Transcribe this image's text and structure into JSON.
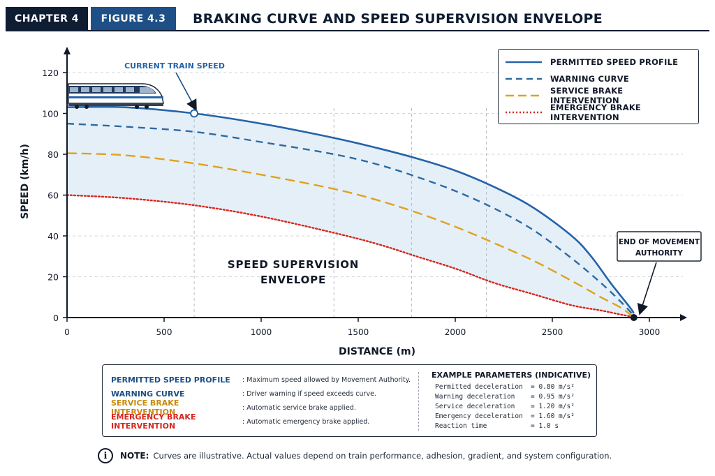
{
  "header": {
    "chapter": "CHAPTER 4",
    "figure": "FIGURE 4.3",
    "title": "BRAKING CURVE AND SPEED SUPERVISION ENVELOPE"
  },
  "colors": {
    "navy": "#0f1d33",
    "permitted": "#2563a8",
    "warning": "#2d6aa3",
    "service": "#e0a21a",
    "emergency": "#d7261e",
    "envelope_fill": "#e4eff8"
  },
  "chart_data": {
    "type": "line",
    "xlabel": "DISTANCE (m)",
    "ylabel": "SPEED (km/h)",
    "xlim": [
      0,
      3000
    ],
    "ylim": [
      0,
      120
    ],
    "x_ticks": [
      0,
      500,
      1000,
      1500,
      2000,
      2500,
      3000
    ],
    "y_ticks": [
      0,
      20,
      40,
      60,
      80,
      100,
      120
    ],
    "series": [
      {
        "name": "PERMITTED SPEED PROFILE",
        "style": "solid",
        "color": "#2563a8",
        "points": [
          [
            0,
            103
          ],
          [
            300,
            103
          ],
          [
            655,
            100
          ],
          [
            1000,
            95
          ],
          [
            1375,
            88
          ],
          [
            1600,
            83
          ],
          [
            1800,
            78
          ],
          [
            2000,
            72
          ],
          [
            2200,
            64
          ],
          [
            2400,
            54
          ],
          [
            2600,
            40
          ],
          [
            2700,
            30
          ],
          [
            2800,
            17
          ],
          [
            2900,
            5
          ],
          [
            2920,
            2
          ]
        ]
      },
      {
        "name": "WARNING CURVE",
        "style": "dashed",
        "color": "#2d6aa3",
        "points": [
          [
            0,
            95
          ],
          [
            300,
            93.5
          ],
          [
            655,
            91
          ],
          [
            1000,
            86
          ],
          [
            1375,
            80
          ],
          [
            1600,
            75
          ],
          [
            1800,
            69
          ],
          [
            2000,
            62
          ],
          [
            2200,
            53.5
          ],
          [
            2400,
            43
          ],
          [
            2600,
            29
          ],
          [
            2750,
            17
          ],
          [
            2850,
            8
          ],
          [
            2920,
            1
          ]
        ]
      },
      {
        "name": "SERVICE BRAKE INTERVENTION",
        "style": "dashed",
        "color": "#e0a21a",
        "points": [
          [
            0,
            80.5
          ],
          [
            300,
            79.5
          ],
          [
            655,
            75.5
          ],
          [
            1000,
            70
          ],
          [
            1375,
            63
          ],
          [
            1600,
            57.5
          ],
          [
            1800,
            51.5
          ],
          [
            2000,
            44.5
          ],
          [
            2200,
            36.5
          ],
          [
            2400,
            28
          ],
          [
            2600,
            18
          ],
          [
            2750,
            10
          ],
          [
            2850,
            5
          ],
          [
            2910,
            1
          ]
        ]
      },
      {
        "name": "EMERGENCY BRAKE INTERVENTION",
        "style": "dotted",
        "color": "#d7261e",
        "points": [
          [
            0,
            60
          ],
          [
            300,
            58.5
          ],
          [
            655,
            55
          ],
          [
            1000,
            49.5
          ],
          [
            1375,
            41.5
          ],
          [
            1600,
            36
          ],
          [
            1800,
            30
          ],
          [
            2000,
            24
          ],
          [
            2200,
            17
          ],
          [
            2400,
            11.5
          ],
          [
            2600,
            6
          ],
          [
            2750,
            3.5
          ],
          [
            2850,
            1.5
          ],
          [
            2910,
            0.5
          ]
        ]
      }
    ],
    "markers": [
      {
        "label": "CURRENT TRAIN SPEED",
        "x": 655,
        "y": 100
      },
      {
        "label": "END OF MOVEMENT AUTHORITY",
        "x": 2920,
        "y": 0
      }
    ],
    "reference_lines_x": [
      655,
      1375,
      1775,
      2160
    ],
    "envelope_label": [
      "SPEED SUPERVISION",
      "ENVELOPE"
    ],
    "legend_position": "top-right",
    "grid": "dashed"
  },
  "legend": [
    {
      "label": "PERMITTED SPEED PROFILE"
    },
    {
      "label": "WARNING CURVE"
    },
    {
      "label": "SERVICE BRAKE INTERVENTION"
    },
    {
      "label": "EMERGENCY BRAKE INTERVENTION"
    }
  ],
  "definitions": [
    {
      "term": "PERMITTED SPEED PROFILE",
      "desc": ": Maximum speed allowed by Movement Authority."
    },
    {
      "term": "WARNING CURVE",
      "desc": ": Driver warning if speed exceeds curve."
    },
    {
      "term": "SERVICE BRAKE INTERVENTION",
      "desc": ": Automatic service brake applied."
    },
    {
      "term": "EMERGENCY BRAKE INTERVENTION",
      "desc": ": Automatic emergency brake applied."
    }
  ],
  "parameters": {
    "title": "EXAMPLE PARAMETERS (INDICATIVE)",
    "rows": [
      {
        "name": "Permitted deceleration",
        "value": "= 0.80 m/s²"
      },
      {
        "name": "Warning deceleration",
        "value": "= 0.95 m/s²"
      },
      {
        "name": "Service deceleration",
        "value": "= 1.20 m/s²"
      },
      {
        "name": "Emergency deceleration",
        "value": "= 1.60 m/s²"
      },
      {
        "name": "Reaction time",
        "value": "= 1.0 s"
      }
    ]
  },
  "note": {
    "icon": "info-icon",
    "icon_glyph": "i",
    "label": "NOTE:",
    "text": "Curves are illustrative. Actual values depend on train performance, adhesion, gradient, and system configuration."
  }
}
